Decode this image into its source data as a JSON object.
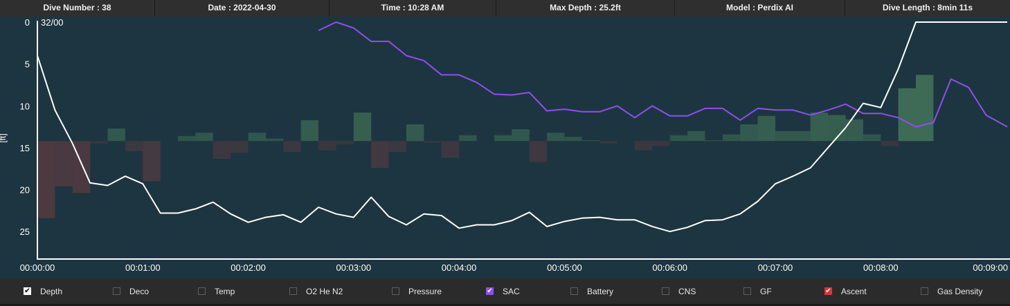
{
  "header": {
    "dive_number": "Dive Number : 38",
    "date": "Date : 2022-04-30",
    "time": "Time : 10:28 AM",
    "max_depth": "Max Depth : 25.2ft",
    "model": "Model : Perdix AI",
    "dive_length": "Dive Length : 8min 11s"
  },
  "chart_data": {
    "type": "line",
    "ylabel": "[ft]",
    "gas_label": "32/00",
    "y_inverted": true,
    "ylim": [
      0,
      27.5
    ],
    "y_ticks": [
      "0",
      "5",
      "10",
      "15",
      "20",
      "25"
    ],
    "x_ticks": [
      "00:00:00",
      "00:01:00",
      "00:02:00",
      "00:03:00",
      "00:04:00",
      "00:05:00",
      "00:06:00",
      "00:07:00",
      "00:08:00",
      "00:09:00"
    ],
    "xlim_seconds": [
      0,
      552
    ],
    "depth": {
      "name": "Depth",
      "color": "#ffffff",
      "t": [
        0,
        10,
        20,
        30,
        40,
        50,
        60,
        70,
        80,
        90,
        100,
        110,
        120,
        130,
        140,
        150,
        160,
        170,
        180,
        190,
        200,
        210,
        220,
        230,
        240,
        250,
        260,
        270,
        280,
        290,
        300,
        310,
        320,
        330,
        340,
        350,
        360,
        370,
        380,
        390,
        400,
        410,
        420,
        430,
        440,
        450,
        460,
        470,
        480,
        490,
        500,
        510,
        520,
        530,
        540,
        552
      ],
      "v": [
        4.0,
        10.5,
        14.5,
        19.2,
        19.5,
        18.4,
        19.3,
        22.8,
        22.8,
        22.3,
        21.5,
        22.9,
        23.9,
        23.3,
        23.0,
        23.9,
        22.1,
        22.9,
        23.3,
        20.9,
        23.2,
        24.2,
        22.9,
        23.1,
        24.6,
        24.2,
        24.2,
        23.7,
        22.7,
        24.4,
        23.8,
        23.4,
        23.3,
        23.6,
        23.6,
        24.4,
        25.0,
        24.5,
        23.7,
        23.6,
        22.9,
        21.4,
        19.3,
        18.4,
        17.4,
        15.0,
        12.6,
        9.7,
        10.2,
        5.6,
        0.0,
        0.0,
        0.0,
        0.0,
        0.0,
        0.0
      ]
    },
    "sac": {
      "name": "SAC",
      "color": "#8e4ff0",
      "t": [
        160,
        170,
        180,
        190,
        200,
        210,
        220,
        230,
        240,
        250,
        260,
        270,
        280,
        290,
        300,
        310,
        320,
        330,
        340,
        350,
        360,
        370,
        380,
        390,
        400,
        410,
        420,
        430,
        440,
        450,
        460,
        470,
        480,
        490,
        500,
        510,
        520,
        530,
        540,
        552
      ],
      "v": [
        1.0,
        0.0,
        0.7,
        2.3,
        2.3,
        4.0,
        4.6,
        6.3,
        6.3,
        7.2,
        8.6,
        8.7,
        8.4,
        10.6,
        10.4,
        10.7,
        10.7,
        10.0,
        11.4,
        10.0,
        11.2,
        11.2,
        10.3,
        10.3,
        11.7,
        10.3,
        10.5,
        10.5,
        11.1,
        10.5,
        9.8,
        10.9,
        10.9,
        11.4,
        12.5,
        12.0,
        6.8,
        7.8,
        11.1,
        12.5
      ]
    },
    "ascent": {
      "name": "Ascent",
      "baseline": 14.2,
      "positive_color": "#3e6b55",
      "negative_color": "#4b3a40",
      "t": [
        5,
        15,
        25,
        35,
        45,
        55,
        65,
        75,
        85,
        95,
        105,
        115,
        125,
        135,
        145,
        155,
        165,
        175,
        185,
        195,
        205,
        215,
        225,
        235,
        245,
        255,
        265,
        275,
        285,
        295,
        305,
        315,
        325,
        335,
        345,
        355,
        365,
        375,
        385,
        395,
        405,
        415,
        425,
        435,
        445,
        455,
        465,
        475,
        485,
        495,
        505
      ],
      "v": [
        -9.2,
        -5.4,
        -6.2,
        -0.3,
        1.5,
        -1.2,
        -4.8,
        0.0,
        0.6,
        1.0,
        -2.1,
        -1.4,
        1.0,
        0.3,
        -1.3,
        2.5,
        -1.1,
        -0.4,
        3.4,
        -3.2,
        -1.3,
        2.0,
        -0.2,
        -2.0,
        0.7,
        0.0,
        0.7,
        1.4,
        -2.5,
        1.0,
        0.5,
        0.1,
        -0.3,
        0.0,
        -1.1,
        -0.6,
        0.7,
        1.2,
        0.1,
        0.8,
        2.0,
        3.0,
        1.2,
        1.2,
        3.4,
        3.1,
        2.6,
        0.8,
        -0.6,
        6.3,
        7.9
      ]
    }
  },
  "legend": {
    "items": [
      {
        "label": "Depth",
        "checked": true,
        "color": "#ffffff"
      },
      {
        "label": "Deco",
        "checked": false
      },
      {
        "label": "Temp",
        "checked": false
      },
      {
        "label": "O2 He N2",
        "checked": false
      },
      {
        "label": "Pressure",
        "checked": false
      },
      {
        "label": "SAC",
        "checked": true,
        "color": "#8e4ff0"
      },
      {
        "label": "Battery",
        "checked": false
      },
      {
        "label": "CNS",
        "checked": false
      },
      {
        "label": "GF",
        "checked": false
      },
      {
        "label": "Ascent",
        "checked": true,
        "color": "#d93535"
      },
      {
        "label": "Gas Density",
        "checked": false
      }
    ]
  },
  "colors": {
    "plot_background": "#1d3540",
    "header_background": "#2f2f2f",
    "legend_background": "#2b2b2b"
  }
}
